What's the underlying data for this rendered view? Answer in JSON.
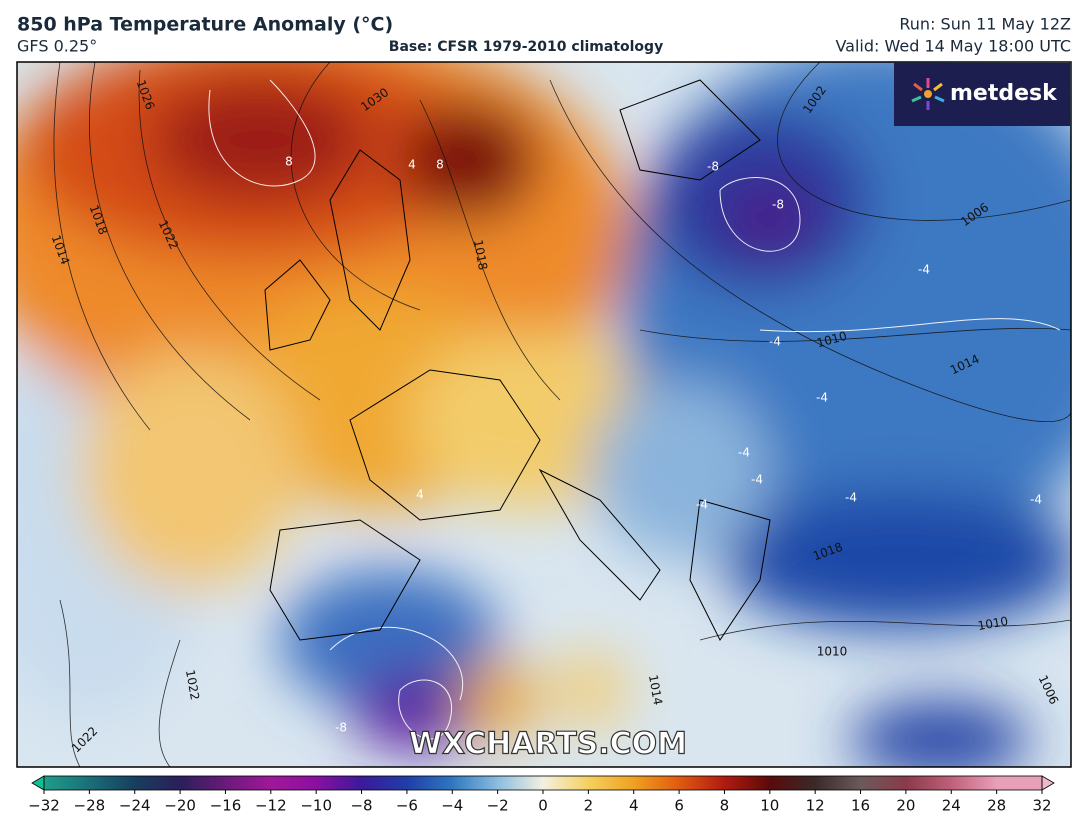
{
  "header": {
    "title": "850 hPa Temperature Anomaly (°C)",
    "model": "GFS 0.25°",
    "base": "Base: CFSR 1979-2010 climatology",
    "run": "Run: Sun 11 May 12Z",
    "valid": "Valid: Wed 14 May 18:00 UTC"
  },
  "logo": "metdesk",
  "watermark": "WXCHARTS.COM",
  "colorbar": {
    "ticks": [
      "−32",
      "−28",
      "−24",
      "−20",
      "−16",
      "−12",
      "−10",
      "−8",
      "−6",
      "−4",
      "−2",
      "0",
      "2",
      "4",
      "6",
      "8",
      "10",
      "12",
      "16",
      "20",
      "24",
      "28",
      "32"
    ]
  },
  "isobar_labels": [
    "1026",
    "1030",
    "1018",
    "1022",
    "1014",
    "1018",
    "1002",
    "1006",
    "1010",
    "1014",
    "1018",
    "1010",
    "1010",
    "1006",
    "1022",
    "1022",
    "1014"
  ],
  "anomaly_labels": [
    "8",
    "4",
    "8",
    "-8",
    "-8",
    "-4",
    "-4",
    "-4",
    "-4",
    "-4",
    "-4",
    "-4",
    "-4",
    "4",
    "-8"
  ]
}
